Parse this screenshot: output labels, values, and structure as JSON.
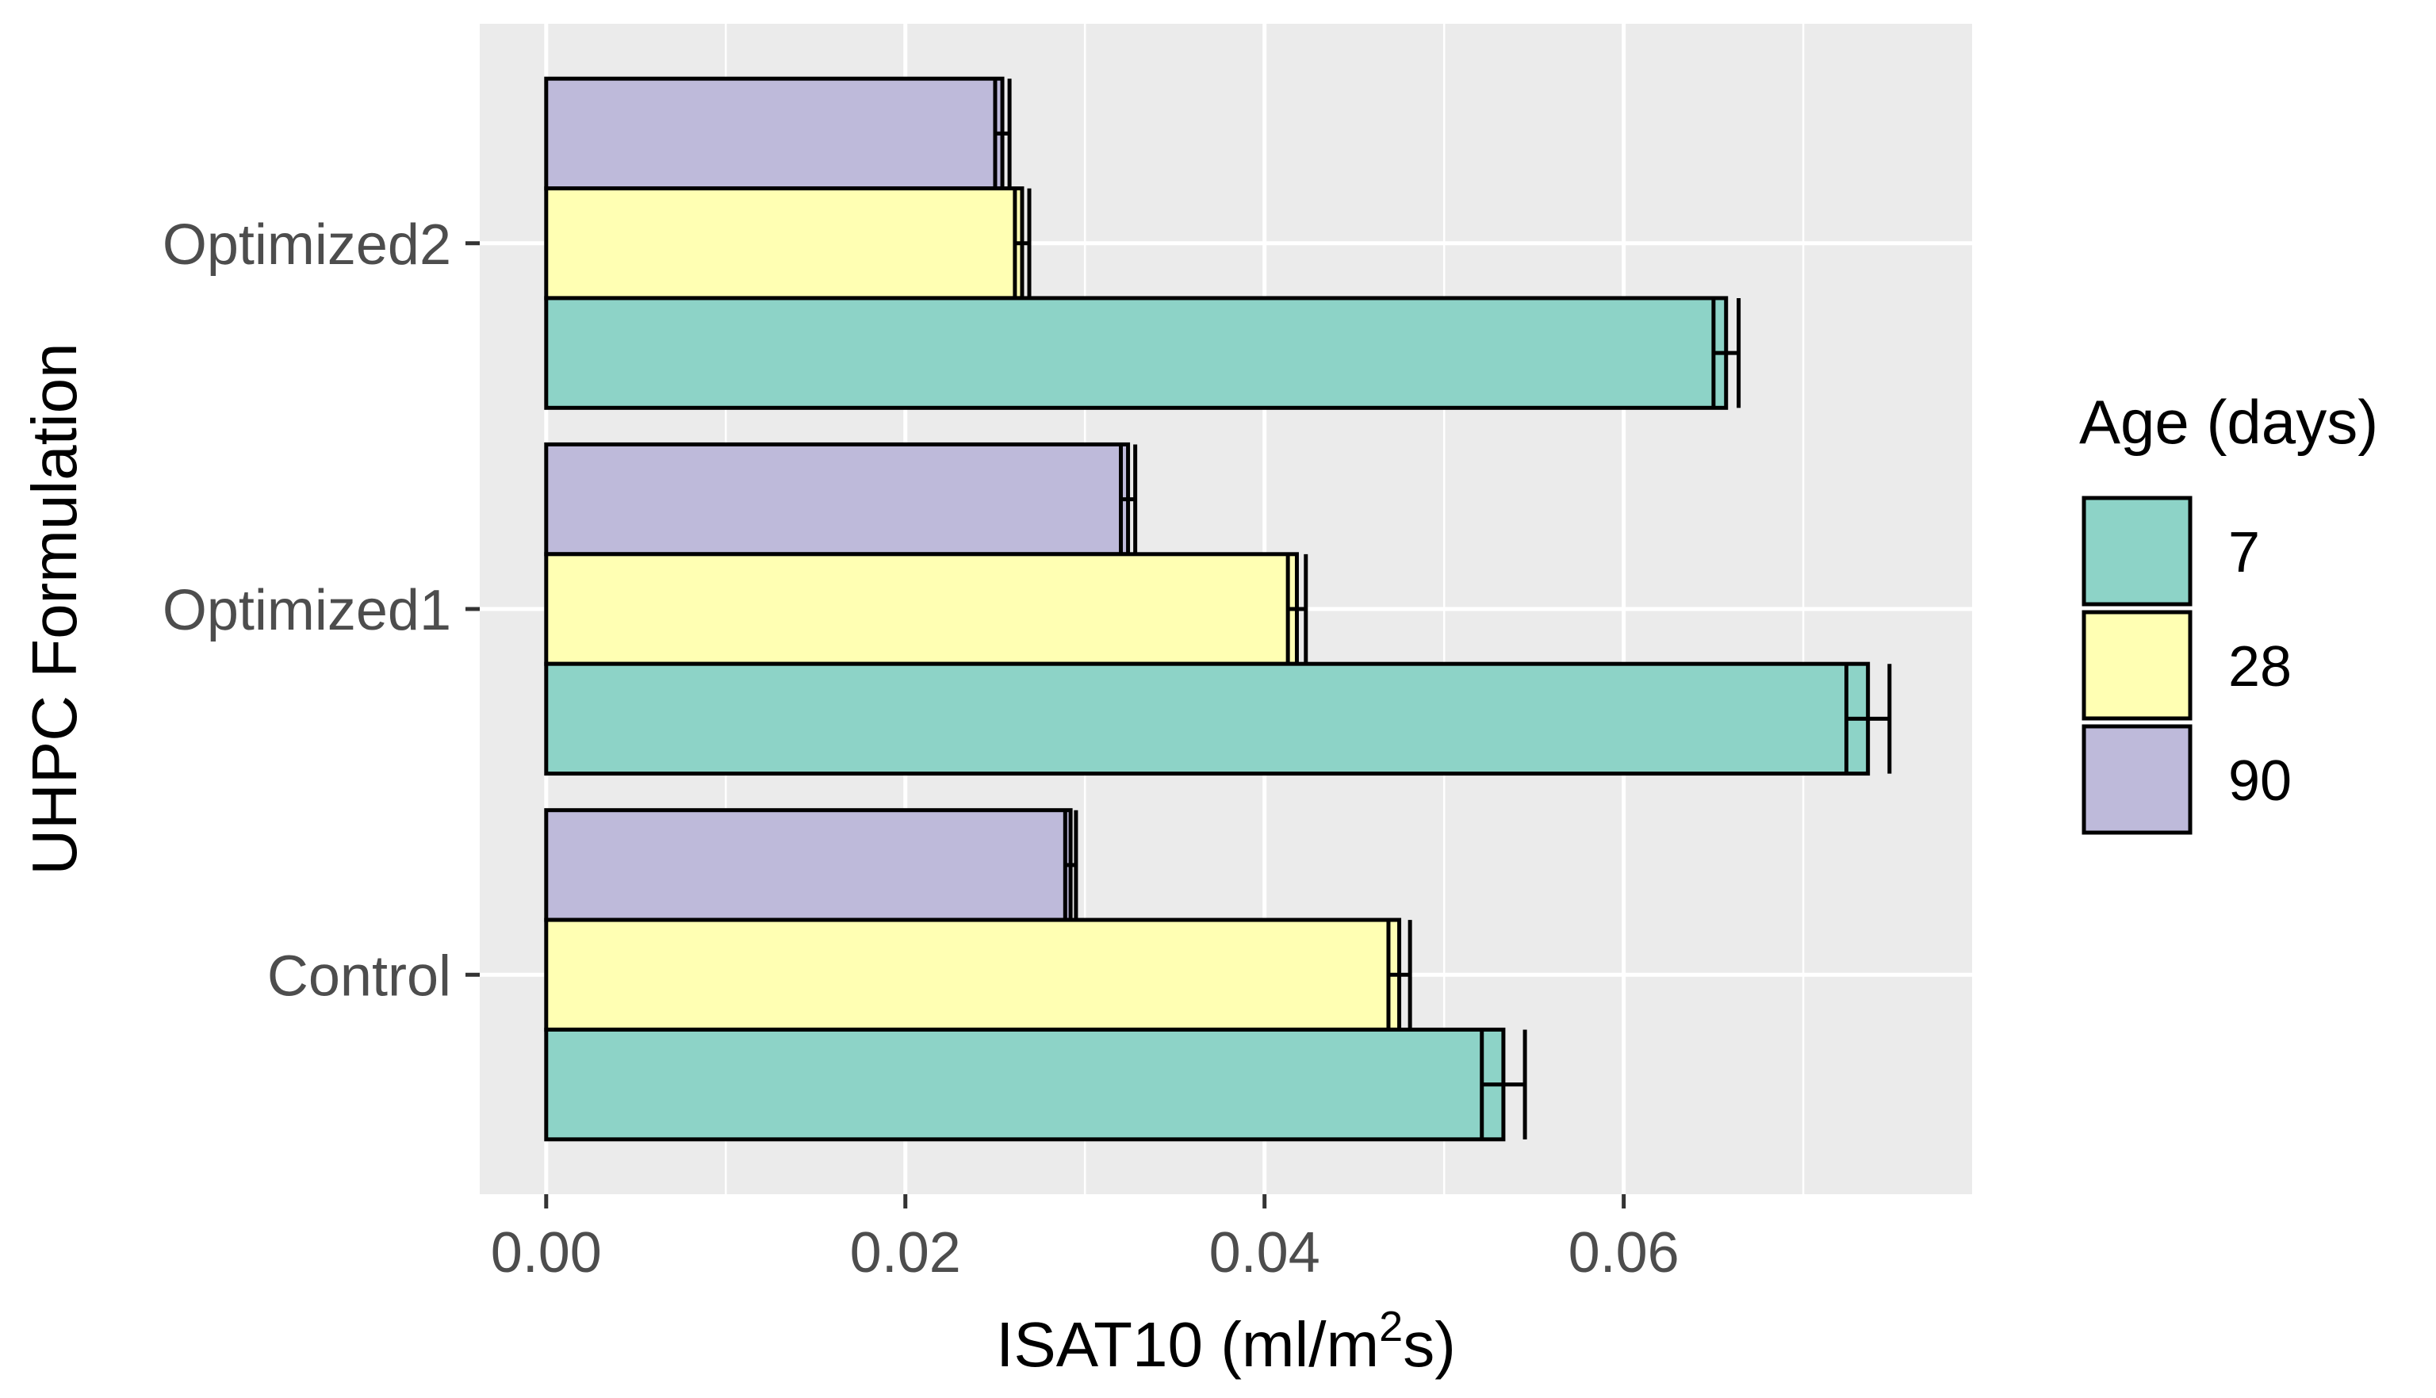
{
  "chart_data": {
    "type": "bar",
    "orientation": "horizontal",
    "categories": [
      "Control",
      "Optimized1",
      "Optimized2"
    ],
    "series": [
      {
        "name": "7",
        "color": "#8DD3C7",
        "values": [
          0.0533,
          0.0736,
          0.0657
        ],
        "errors": [
          0.0012,
          0.0012,
          0.0007
        ]
      },
      {
        "name": "28",
        "color": "#FFFFB3",
        "values": [
          0.0475,
          0.0418,
          0.0265
        ],
        "errors": [
          0.0006,
          0.0005,
          0.0004
        ]
      },
      {
        "name": "90",
        "color": "#BEBADA",
        "values": [
          0.0292,
          0.0324,
          0.0254
        ],
        "errors": [
          0.0003,
          0.0004,
          0.0004
        ]
      }
    ],
    "xlim": [
      -0.0037,
      0.0794
    ],
    "xticks": [
      0.0,
      0.02,
      0.04,
      0.06
    ],
    "xtick_labels": [
      "0.00",
      "0.02",
      "0.04",
      "0.06"
    ],
    "xlabel": {
      "main": "ISAT10 (ml/m",
      "sup": "2",
      "tail": "s)"
    },
    "ylabel": "UHPC Formulation",
    "legend": {
      "title": "Age (days)",
      "placement": "right",
      "items": [
        "7",
        "28",
        "90"
      ]
    },
    "grid": true,
    "panel_color": "#EBEBEB"
  }
}
